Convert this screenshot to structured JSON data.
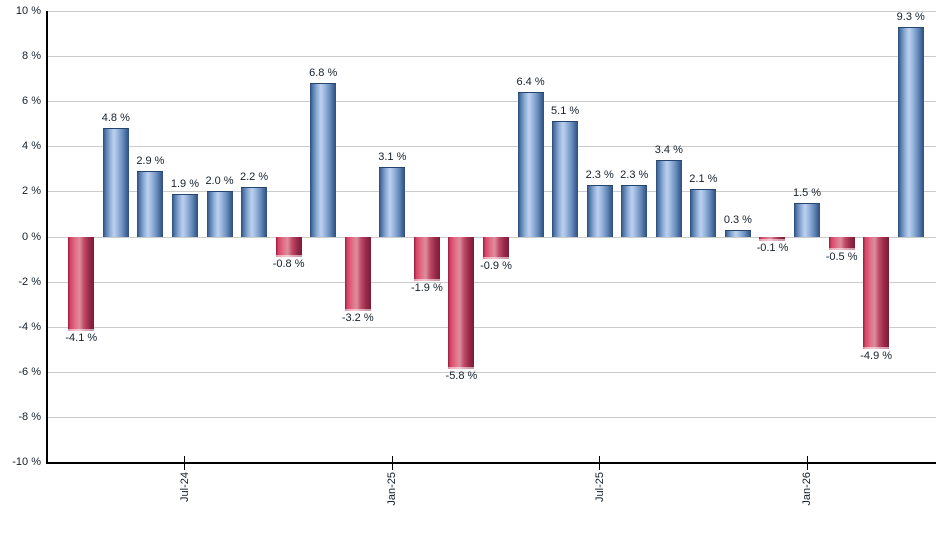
{
  "chart_data": {
    "type": "bar",
    "description": "Monthly percentage returns bar chart, blue bars positive, red bars negative",
    "values": [
      -4.1,
      4.8,
      2.9,
      1.9,
      2.0,
      2.2,
      -0.8,
      6.8,
      -3.2,
      3.1,
      -1.9,
      -5.8,
      -0.9,
      6.4,
      5.1,
      2.3,
      2.3,
      3.4,
      2.1,
      0.3,
      -0.1,
      1.5,
      -0.5,
      -4.9,
      9.3
    ],
    "bar_count": 25,
    "value_label_suffix": " %",
    "x_ticks": [
      {
        "bar_index": 3,
        "label": "Jul-24"
      },
      {
        "bar_index": 9,
        "label": "Jan-25"
      },
      {
        "bar_index": 15,
        "label": "Jul-25"
      },
      {
        "bar_index": 21,
        "label": "Jan-26"
      }
    ],
    "y_axis": {
      "min": -10,
      "max": 10,
      "step": 2,
      "suffix": " %"
    },
    "grid": true,
    "legend": "none",
    "colors": {
      "positive_bar": "#6f94c3",
      "positive_bar_light": "#bdd1ef",
      "positive_bar_dark": "#2f4f7c",
      "negative_bar": "#c23254",
      "negative_bar_light": "#dc8d9f",
      "negative_bar_dark": "#7a1c35",
      "gridline": "#cccccc",
      "axis": "#000000",
      "label_text": "#15202b",
      "background": "#ffffff"
    }
  }
}
